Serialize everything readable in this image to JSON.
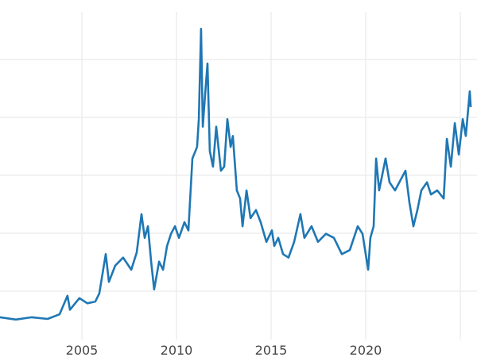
{
  "chart_data": {
    "type": "line",
    "title": "",
    "xlabel": "",
    "ylabel": "",
    "xlim": [
      2000.67,
      2025.55
    ],
    "ylim": [
      5,
      56
    ],
    "grid": true,
    "x_ticks": [
      2005,
      2010,
      2015,
      2020,
      2025
    ],
    "x_tick_labels": [
      "2005",
      "2010",
      "2015",
      "2020",
      ""
    ],
    "y_gridlines": [
      10,
      20,
      30,
      40,
      50
    ],
    "line_color": "#1f77b4",
    "series": [
      {
        "x": [
          2000.67,
          2001.51,
          2002.35,
          2003.19,
          2003.82,
          2004.24,
          2004.37,
          2004.87,
          2005.29,
          2005.71,
          2005.92,
          2006.26,
          2006.43,
          2006.76,
          2007.18,
          2007.61,
          2007.9,
          2008.15,
          2008.32,
          2008.49,
          2008.66,
          2008.82,
          2009.08,
          2009.29,
          2009.5,
          2009.71,
          2009.92,
          2010.13,
          2010.42,
          2010.63,
          2010.84,
          2011.09,
          2011.18,
          2011.3,
          2011.39,
          2011.51,
          2011.64,
          2011.76,
          2011.93,
          2012.1,
          2012.35,
          2012.52,
          2012.69,
          2012.86,
          2012.98,
          2013.19,
          2013.36,
          2013.49,
          2013.7,
          2013.91,
          2014.2,
          2014.45,
          2014.75,
          2015.04,
          2015.17,
          2015.38,
          2015.63,
          2015.92,
          2016.22,
          2016.55,
          2016.76,
          2017.14,
          2017.48,
          2017.9,
          2018.32,
          2018.74,
          2019.16,
          2019.58,
          2019.83,
          2020.13,
          2020.25,
          2020.42,
          2020.55,
          2020.71,
          2021.05,
          2021.26,
          2021.55,
          2021.89,
          2022.1,
          2022.31,
          2022.52,
          2022.73,
          2022.94,
          2023.24,
          2023.45,
          2023.78,
          2024.12,
          2024.29,
          2024.5,
          2024.71,
          2024.92,
          2025.13,
          2025.29,
          2025.5,
          2025.55
        ],
        "y": [
          5.5,
          5.1,
          5.5,
          5.2,
          6.0,
          9.2,
          6.8,
          8.8,
          7.9,
          8.2,
          9.6,
          16.4,
          11.6,
          14.4,
          15.8,
          13.7,
          16.7,
          23.3,
          19.2,
          21.2,
          15.1,
          10.3,
          15.1,
          13.7,
          17.8,
          19.9,
          21.2,
          19.2,
          21.9,
          20.5,
          32.9,
          34.9,
          39.7,
          55.3,
          38.4,
          43.8,
          49.3,
          34.2,
          31.5,
          38.4,
          30.8,
          31.5,
          39.7,
          34.9,
          36.8,
          27.4,
          26.0,
          21.2,
          27.4,
          22.6,
          24.0,
          21.9,
          18.5,
          20.5,
          17.8,
          19.2,
          16.4,
          15.8,
          18.5,
          23.3,
          19.2,
          21.2,
          18.5,
          19.9,
          19.2,
          16.4,
          17.1,
          21.2,
          19.9,
          13.7,
          19.2,
          21.2,
          32.9,
          27.4,
          32.9,
          28.8,
          27.4,
          29.5,
          30.8,
          25.3,
          21.2,
          24.0,
          27.4,
          28.8,
          26.7,
          27.4,
          26.0,
          36.3,
          31.5,
          39.0,
          33.6,
          39.7,
          36.8,
          44.5,
          41.8
        ]
      }
    ]
  }
}
